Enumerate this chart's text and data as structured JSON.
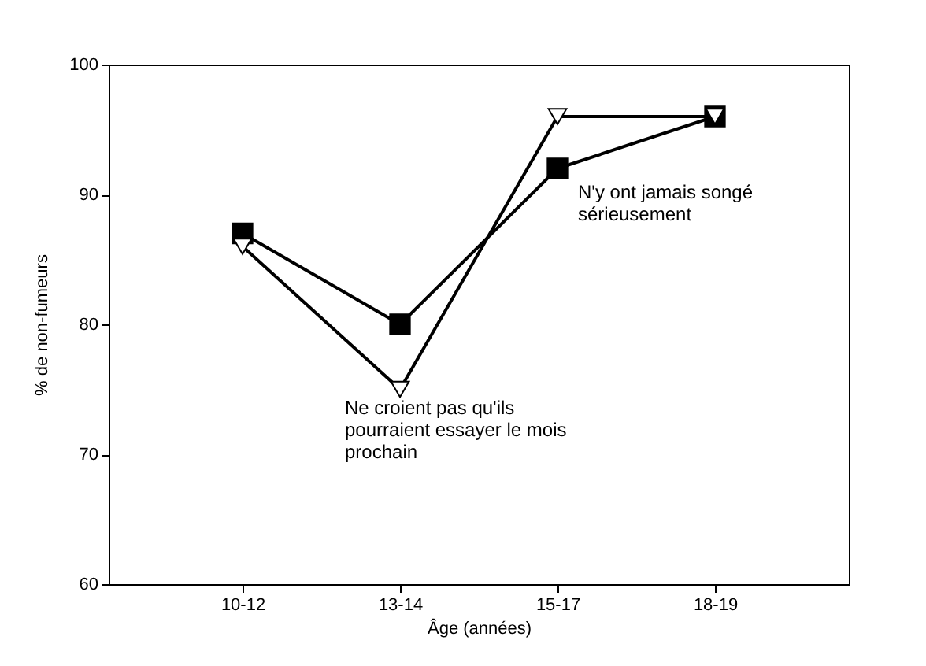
{
  "chart_data": {
    "type": "line",
    "xlabel": "Âge (années)",
    "ylabel": "% de non-fumeurs",
    "categories": [
      "10-12",
      "13-14",
      "15-17",
      "18-19"
    ],
    "series": [
      {
        "name": "N'y ont jamais songé sérieusement",
        "color": "#000000",
        "marker": "square",
        "values": [
          87,
          80,
          92,
          96
        ]
      },
      {
        "name": "Ne croient pas qu'ils pourraient essayer le mois prochain",
        "color": "#000000",
        "marker": "triangle",
        "values": [
          86,
          75,
          96,
          96
        ]
      }
    ],
    "ylim": [
      60,
      100
    ],
    "yticks": [
      60,
      70,
      80,
      90,
      100
    ],
    "grid": false,
    "legend": false,
    "line_style": "solid"
  }
}
